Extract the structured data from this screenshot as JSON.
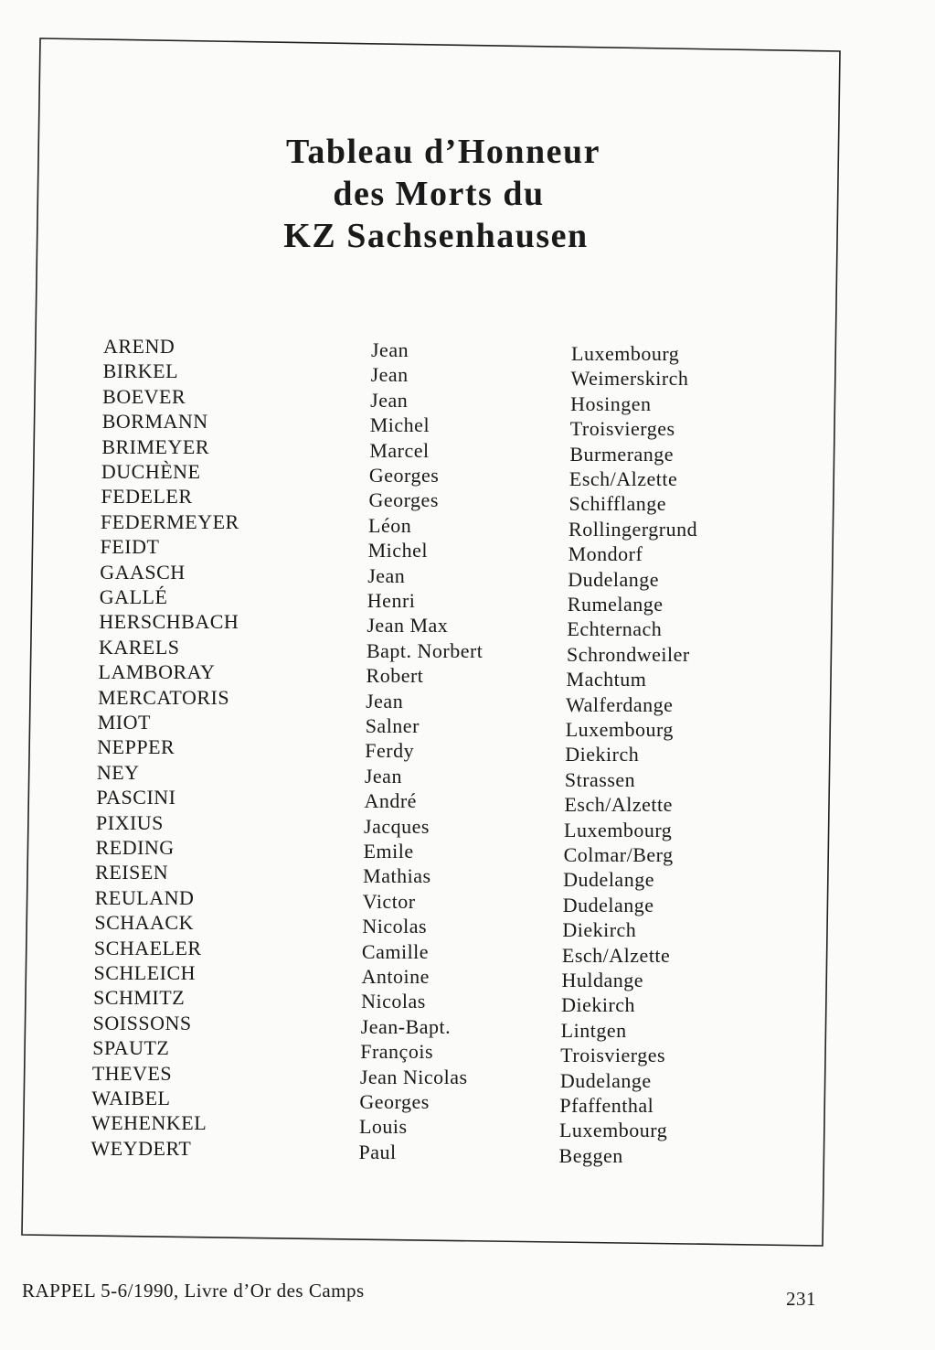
{
  "title_lines": [
    "Tableau d’Honneur",
    "des Morts du",
    "KZ Sachsenhausen"
  ],
  "rows": [
    [
      "AREND",
      "Jean",
      "Luxembourg"
    ],
    [
      "BIRKEL",
      "Jean",
      "Weimerskirch"
    ],
    [
      "BOEVER",
      "Jean",
      "Hosingen"
    ],
    [
      "BORMANN",
      "Michel",
      "Troisvierges"
    ],
    [
      "BRIMEYER",
      "Marcel",
      "Burmerange"
    ],
    [
      "DUCHÈNE",
      "Georges",
      "Esch/Alzette"
    ],
    [
      "FEDELER",
      "Georges",
      "Schifflange"
    ],
    [
      "FEDERMEYER",
      "Léon",
      "Rollingergrund"
    ],
    [
      "FEIDT",
      "Michel",
      "Mondorf"
    ],
    [
      "GAASCH",
      "Jean",
      "Dudelange"
    ],
    [
      "GALLÉ",
      "Henri",
      "Rumelange"
    ],
    [
      "HERSCHBACH",
      "Jean Max",
      "Echternach"
    ],
    [
      "KARELS",
      "Bapt. Norbert",
      "Schrondweiler"
    ],
    [
      "LAMBORAY",
      "Robert",
      "Machtum"
    ],
    [
      "MERCATORIS",
      "Jean",
      "Walferdange"
    ],
    [
      "MIOT",
      "Salner",
      "Luxembourg"
    ],
    [
      "NEPPER",
      "Ferdy",
      "Diekirch"
    ],
    [
      "NEY",
      "Jean",
      "Strassen"
    ],
    [
      "PASCINI",
      "André",
      "Esch/Alzette"
    ],
    [
      "PIXIUS",
      "Jacques",
      "Luxembourg"
    ],
    [
      "REDING",
      "Emile",
      "Colmar/Berg"
    ],
    [
      "REISEN",
      "Mathias",
      "Dudelange"
    ],
    [
      "REULAND",
      "Victor",
      "Dudelange"
    ],
    [
      "SCHAACK",
      "Nicolas",
      "Diekirch"
    ],
    [
      "SCHAELER",
      "Camille",
      "Esch/Alzette"
    ],
    [
      "SCHLEICH",
      "Antoine",
      "Huldange"
    ],
    [
      "SCHMITZ",
      "Nicolas",
      "Diekirch"
    ],
    [
      "SOISSONS",
      "Jean-Bapt.",
      "Lintgen"
    ],
    [
      "SPAUTZ",
      "François",
      "Troisvierges"
    ],
    [
      "THEVES",
      "Jean Nicolas",
      "Dudelange"
    ],
    [
      "WAIBEL",
      "Georges",
      "Pfaffenthal"
    ],
    [
      "WEHENKEL",
      "Louis",
      "Luxembourg"
    ],
    [
      "WEYDERT",
      "Paul",
      "Beggen"
    ]
  ],
  "footer": {
    "source": "RAPPEL 5-6/1990, Livre d’Or des Camps",
    "page_number": "231"
  }
}
